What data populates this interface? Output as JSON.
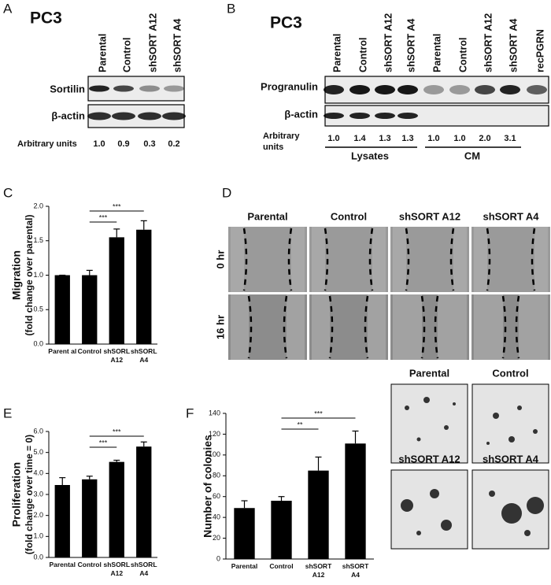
{
  "panel_letters": [
    "A",
    "B",
    "C",
    "D",
    "E",
    "F"
  ],
  "blot_a": {
    "title": "PC3",
    "lanes": [
      "Parental",
      "Control",
      "shSORT A12",
      "shSORT A4"
    ],
    "rows": [
      "Sortilin",
      "β-actin"
    ],
    "units_label": "Arbitrary units",
    "units": [
      "1.0",
      "0.9",
      "0.3",
      "0.2"
    ]
  },
  "blot_b": {
    "title": "PC3",
    "lanes": [
      "Parental",
      "Control",
      "shSORT A12",
      "shSORT A4",
      "Parental",
      "Control",
      "shSORT A12",
      "shSORT A4",
      "recPGRN"
    ],
    "rows": [
      "Progranulin",
      "β-actin"
    ],
    "units_label": [
      "Arbitrary",
      "units"
    ],
    "units": [
      "1.0",
      "1.4",
      "1.3",
      "1.3",
      "1.0",
      "1.0",
      "2.0",
      "3.1"
    ],
    "groups": [
      "Lysates",
      "CM"
    ]
  },
  "scratch_d": {
    "columns": [
      "Parental",
      "Control",
      "shSORT A12",
      "shSORT A4"
    ],
    "rows": [
      "0 hr",
      "16 hr"
    ]
  },
  "colony_f": {
    "labels": [
      "Parental",
      "Control",
      "shSORT A12",
      "shSORT A4"
    ]
  },
  "chart_data": [
    {
      "type": "bar",
      "ylabel": [
        "Migration",
        "(fold change over parental)"
      ],
      "categories": [
        "Parent al",
        "Control",
        "shSORL\nA12",
        "shSORL\nA4"
      ],
      "values": [
        1.0,
        1.0,
        1.55,
        1.66
      ],
      "errors": [
        0,
        0.07,
        0.12,
        0.13
      ],
      "color": "#000000",
      "ylim": [
        0,
        2
      ],
      "yticks": [
        {
          "value": 0,
          "label": "0.0"
        },
        0.5,
        {
          "value": 1,
          "label": "1.0"
        },
        1.5,
        {
          "value": 2,
          "label": "2.0"
        }
      ],
      "annotations": [
        "***",
        "***"
      ]
    },
    {
      "type": "bar",
      "ylabel": [
        "Proliferation",
        "(fold change over time = 0)"
      ],
      "categories": [
        "Parental",
        "Control",
        "shSORL\nA12",
        "shSORL\nA4"
      ],
      "values": [
        3.45,
        3.72,
        4.55,
        5.28
      ],
      "errors": [
        0.35,
        0.15,
        0.08,
        0.22
      ],
      "color": "#000000",
      "ylim": [
        0,
        6
      ],
      "yticks": [
        {
          "value": 0,
          "label": "0.0"
        },
        {
          "value": 1,
          "label": "1.0"
        },
        {
          "value": 2,
          "label": "2.0"
        },
        {
          "value": 3,
          "label": "3.0"
        },
        {
          "value": 4,
          "label": "4.0"
        },
        {
          "value": 5,
          "label": "5.0"
        },
        {
          "value": 6,
          "label": "6.0"
        }
      ],
      "annotations": [
        "***",
        "***"
      ]
    },
    {
      "type": "bar",
      "ylabel": [
        "Number of colonies"
      ],
      "categories": [
        "Parental",
        "Control",
        "shSORT\nA12",
        "shSORT\nA4"
      ],
      "values": [
        49,
        56,
        85,
        111
      ],
      "errors": [
        7,
        4,
        13,
        12
      ],
      "color": "#000000",
      "ylim": [
        0,
        140
      ],
      "yticks": [
        0,
        20,
        40,
        60,
        80,
        100,
        120,
        140
      ],
      "annotations": [
        "**",
        "***"
      ]
    }
  ]
}
